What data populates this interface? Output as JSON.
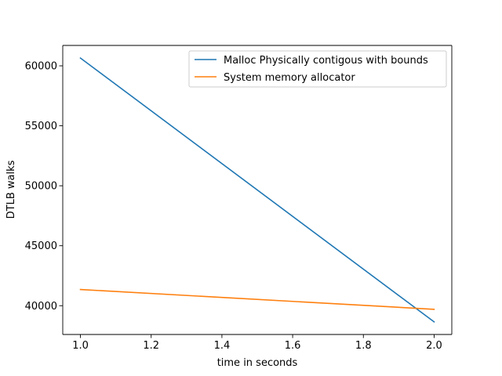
{
  "colors": {
    "series_1": "#1f77b4",
    "series_2": "#ff7f0e",
    "axis": "#000000",
    "legend_border": "#cccccc",
    "background": "#ffffff"
  },
  "chart_data": {
    "type": "line",
    "title": "",
    "xlabel": "time in seconds",
    "ylabel": "DTLB walks",
    "xlim": [
      0.95,
      2.05
    ],
    "ylim": [
      37600,
      61700
    ],
    "grid": false,
    "legend_position": "upper right",
    "xticks": [
      1.0,
      1.2,
      1.4,
      1.6,
      1.8,
      2.0
    ],
    "xtick_labels": [
      "1.0",
      "1.2",
      "1.4",
      "1.6",
      "1.8",
      "2.0"
    ],
    "yticks": [
      40000,
      45000,
      50000,
      55000,
      60000
    ],
    "ytick_labels": [
      "40000",
      "45000",
      "50000",
      "55000",
      "60000"
    ],
    "series": [
      {
        "name": "Malloc Physically contigous with bounds",
        "color": "#1f77b4",
        "x": [
          1.0,
          2.0
        ],
        "y": [
          60650,
          38650
        ]
      },
      {
        "name": "System memory allocator",
        "color": "#ff7f0e",
        "x": [
          1.0,
          2.0
        ],
        "y": [
          41350,
          39700
        ]
      }
    ]
  }
}
